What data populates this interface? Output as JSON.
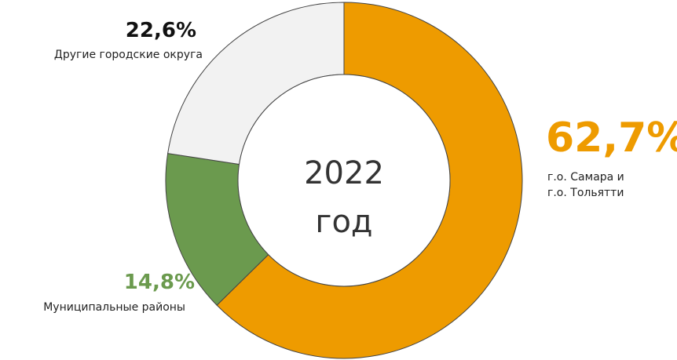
{
  "chart_data": {
    "type": "donut",
    "center_label": "2022 год",
    "categories": [
      "г.о. Самара и г.о. Тольятти",
      "Муниципальные районы",
      "Другие городские округа"
    ],
    "values": [
      62.7,
      14.8,
      22.6
    ],
    "value_labels": [
      "62,7%",
      "14,8%",
      "22,6%"
    ],
    "colors": [
      "#ee9b00",
      "#6b9a4e",
      "#f2f2f2"
    ]
  }
}
